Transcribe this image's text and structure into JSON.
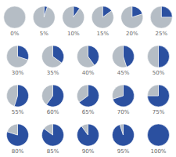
{
  "chart_data": [
    {
      "type": "pie",
      "title": "0%",
      "values": [
        0,
        100
      ],
      "colors": [
        "#2b50a0",
        "#b5bdc5"
      ]
    },
    {
      "type": "pie",
      "title": "5%",
      "values": [
        5,
        95
      ],
      "colors": [
        "#2b50a0",
        "#b5bdc5"
      ]
    },
    {
      "type": "pie",
      "title": "10%",
      "values": [
        10,
        90
      ],
      "colors": [
        "#2b50a0",
        "#b5bdc5"
      ]
    },
    {
      "type": "pie",
      "title": "15%",
      "values": [
        15,
        85
      ],
      "colors": [
        "#2b50a0",
        "#b5bdc5"
      ]
    },
    {
      "type": "pie",
      "title": "20%",
      "values": [
        20,
        80
      ],
      "colors": [
        "#2b50a0",
        "#b5bdc5"
      ]
    },
    {
      "type": "pie",
      "title": "25%",
      "values": [
        25,
        75
      ],
      "colors": [
        "#2b50a0",
        "#b5bdc5"
      ]
    },
    {
      "type": "pie",
      "title": "30%",
      "values": [
        30,
        70
      ],
      "colors": [
        "#2b50a0",
        "#b5bdc5"
      ]
    },
    {
      "type": "pie",
      "title": "35%",
      "values": [
        35,
        65
      ],
      "colors": [
        "#2b50a0",
        "#b5bdc5"
      ]
    },
    {
      "type": "pie",
      "title": "40%",
      "values": [
        40,
        60
      ],
      "colors": [
        "#2b50a0",
        "#b5bdc5"
      ]
    },
    {
      "type": "pie",
      "title": "45%",
      "values": [
        45,
        55
      ],
      "colors": [
        "#2b50a0",
        "#b5bdc5"
      ]
    },
    {
      "type": "pie",
      "title": "50%",
      "values": [
        50,
        50
      ],
      "colors": [
        "#2b50a0",
        "#b5bdc5"
      ]
    },
    {
      "type": "pie",
      "title": "55%",
      "values": [
        55,
        45
      ],
      "colors": [
        "#2b50a0",
        "#b5bdc5"
      ]
    },
    {
      "type": "pie",
      "title": "60%",
      "values": [
        60,
        40
      ],
      "colors": [
        "#2b50a0",
        "#b5bdc5"
      ]
    },
    {
      "type": "pie",
      "title": "65%",
      "values": [
        65,
        35
      ],
      "colors": [
        "#2b50a0",
        "#b5bdc5"
      ]
    },
    {
      "type": "pie",
      "title": "70%",
      "values": [
        70,
        30
      ],
      "colors": [
        "#2b50a0",
        "#b5bdc5"
      ]
    },
    {
      "type": "pie",
      "title": "75%",
      "values": [
        75,
        25
      ],
      "colors": [
        "#2b50a0",
        "#b5bdc5"
      ]
    },
    {
      "type": "pie",
      "title": "80%",
      "values": [
        80,
        20
      ],
      "colors": [
        "#2b50a0",
        "#b5bdc5"
      ]
    },
    {
      "type": "pie",
      "title": "85%",
      "values": [
        85,
        15
      ],
      "colors": [
        "#2b50a0",
        "#b5bdc5"
      ]
    },
    {
      "type": "pie",
      "title": "90%",
      "values": [
        90,
        10
      ],
      "colors": [
        "#2b50a0",
        "#b5bdc5"
      ]
    },
    {
      "type": "pie",
      "title": "95%",
      "values": [
        95,
        5
      ],
      "colors": [
        "#2b50a0",
        "#b5bdc5"
      ]
    },
    {
      "type": "pie",
      "title": "100%",
      "values": [
        100,
        0
      ],
      "colors": [
        "#2b50a0",
        "#b5bdc5"
      ]
    }
  ]
}
